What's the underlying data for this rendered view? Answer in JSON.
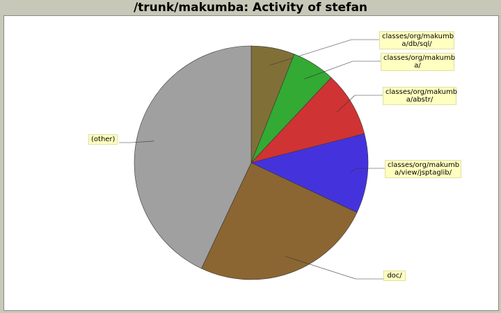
{
  "chart_data": {
    "type": "pie",
    "title": "/trunk/makumba: Activity of stefan",
    "slices": [
      {
        "label": "classes/org/makumba/db/sql/",
        "value": 6,
        "color": "#807038"
      },
      {
        "label": "classes/org/makumba/",
        "value": 6,
        "color": "#33aa33"
      },
      {
        "label": "classes/org/makumba/abstr/",
        "value": 9,
        "color": "#d03333"
      },
      {
        "label": "classes/org/makumba/view/jsptaglib/",
        "value": 11,
        "color": "#4433dd"
      },
      {
        "label": "doc/",
        "value": 25,
        "color": "#8b6633"
      },
      {
        "label": "(other)",
        "value": 43,
        "color": "#a0a0a0"
      }
    ],
    "legend": "callout labels around pie"
  }
}
